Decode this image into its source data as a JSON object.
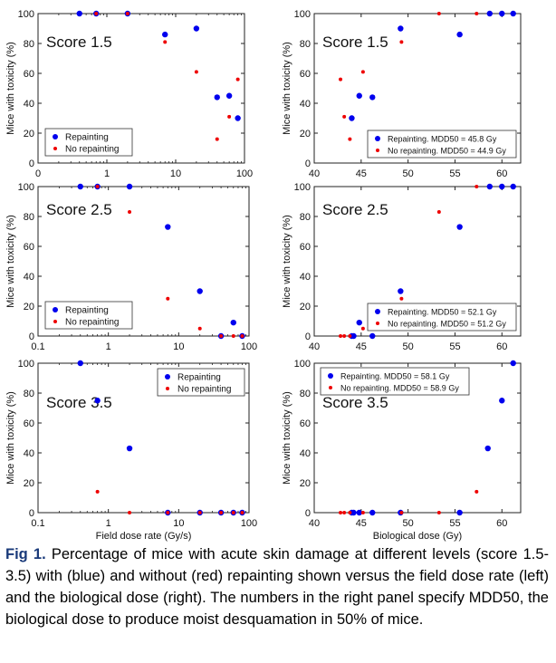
{
  "colors": {
    "repainting": "#0000ee",
    "no_repainting": "#ee0000"
  },
  "caption": {
    "label": "Fig 1.",
    "text": "Percentage of mice with acute skin damage at different levels (score 1.5-3.5) with (blue) and without (red) repainting shown versus the field dose rate (left) and the biological dose (right). The numbers in the right panel specify MDD50, the biological dose to produce moist desquamation in 50% of mice."
  },
  "chart_data": [
    {
      "type": "scatter",
      "annotation": "Score 1.5",
      "xlabel": "",
      "ylabel": "Mice with toxicity (%)",
      "xscale": "log",
      "xlim": [
        0.1,
        100
      ],
      "ylim": [
        0,
        100
      ],
      "xticks": [
        "0",
        "1",
        "10",
        "100"
      ],
      "yticks": [
        "0",
        "20",
        "40",
        "60",
        "80",
        "100"
      ],
      "legend": "bottom-left",
      "series": [
        {
          "name": "Repainting",
          "color": "blue",
          "x": [
            0.4,
            0.7,
            2,
            7,
            20,
            40,
            60,
            80
          ],
          "y": [
            100,
            100,
            100,
            86,
            90,
            44,
            45,
            30
          ]
        },
        {
          "name": "No repainting",
          "color": "red",
          "x": [
            0.7,
            2,
            7,
            20,
            40,
            60,
            80
          ],
          "y": [
            100,
            100,
            81,
            61,
            16,
            31,
            56
          ]
        }
      ]
    },
    {
      "type": "scatter",
      "annotation": "Score 1.5",
      "xlabel": "",
      "ylabel": "Mice with toxicity (%)",
      "xlim": [
        40,
        62
      ],
      "ylim": [
        0,
        100
      ],
      "xticks": [
        "40",
        "45",
        "50",
        "55",
        "60"
      ],
      "yticks": [
        "0",
        "20",
        "40",
        "60",
        "80",
        "100"
      ],
      "legend": "bottom-right",
      "series": [
        {
          "name": "Repainting. MDD50 = 45.8 Gy",
          "color": "blue",
          "x": [
            44,
            44.8,
            46.2,
            49.2,
            55.5,
            58.7,
            60,
            61.2
          ],
          "y": [
            30,
            45,
            44,
            90,
            86,
            100,
            100,
            100
          ]
        },
        {
          "name": "No repainting. MDD50 = 44.9 Gy",
          "color": "red",
          "x": [
            42.8,
            43.2,
            43.8,
            45.2,
            49.3,
            53.3,
            57.3
          ],
          "y": [
            56,
            31,
            16,
            61,
            81,
            100,
            100
          ]
        }
      ]
    },
    {
      "type": "scatter",
      "annotation": "Score 2.5",
      "xlabel": "",
      "ylabel": "Mice with toxicity (%)",
      "xscale": "log",
      "xlim": [
        0.1,
        100
      ],
      "ylim": [
        0,
        100
      ],
      "xticks": [
        "0.1",
        "1",
        "10",
        "100"
      ],
      "yticks": [
        "0",
        "20",
        "40",
        "60",
        "80",
        "100"
      ],
      "legend": "bottom-left",
      "series": [
        {
          "name": "Repainting",
          "color": "blue",
          "x": [
            0.4,
            0.7,
            2,
            7,
            20,
            40,
            60,
            80
          ],
          "y": [
            100,
            100,
            100,
            73,
            30,
            0,
            9,
            0
          ]
        },
        {
          "name": "No repainting",
          "color": "red",
          "x": [
            0.7,
            2,
            7,
            20,
            40,
            60,
            80
          ],
          "y": [
            100,
            83,
            25,
            5,
            0,
            0,
            0
          ]
        }
      ]
    },
    {
      "type": "scatter",
      "annotation": "Score 2.5",
      "xlabel": "",
      "ylabel": "Mice with toxicity (%)",
      "xlim": [
        40,
        62
      ],
      "ylim": [
        0,
        100
      ],
      "xticks": [
        "40",
        "45",
        "50",
        "55",
        "60"
      ],
      "yticks": [
        "0",
        "20",
        "40",
        "60",
        "80",
        "100"
      ],
      "legend": "bottom-right",
      "series": [
        {
          "name": "Repainting. MDD50 = 52.1 Gy",
          "color": "blue",
          "x": [
            44,
            44.2,
            44.8,
            46.2,
            49.2,
            55.5,
            58.7,
            60,
            61.2
          ],
          "y": [
            0,
            0,
            9,
            0,
            30,
            73,
            100,
            100,
            100
          ]
        },
        {
          "name": "No repainting. MDD50 = 51.2 Gy",
          "color": "red",
          "x": [
            42.8,
            43.2,
            43.8,
            45.2,
            49.3,
            53.3,
            57.3
          ],
          "y": [
            0,
            0,
            0,
            5,
            25,
            83,
            100
          ]
        }
      ]
    },
    {
      "type": "scatter",
      "annotation": "Score 3.5",
      "xlabel": "Field dose rate (Gy/s)",
      "ylabel": "Mice with toxicity (%)",
      "xscale": "log",
      "xlim": [
        0.1,
        100
      ],
      "ylim": [
        0,
        100
      ],
      "xticks": [
        "0.1",
        "1",
        "10",
        "100"
      ],
      "yticks": [
        "0",
        "20",
        "40",
        "60",
        "80",
        "100"
      ],
      "legend": "top-right",
      "series": [
        {
          "name": "Repainting",
          "color": "blue",
          "x": [
            0.4,
            0.7,
            2,
            7,
            20,
            40,
            60,
            80
          ],
          "y": [
            100,
            75,
            43,
            0,
            0,
            0,
            0,
            0
          ]
        },
        {
          "name": "No repainting",
          "color": "red",
          "x": [
            0.7,
            2,
            7,
            20,
            40,
            60,
            80
          ],
          "y": [
            14,
            0,
            0,
            0,
            0,
            0,
            0
          ]
        }
      ]
    },
    {
      "type": "scatter",
      "annotation": "Score 3.5",
      "xlabel": "Biological dose (Gy)",
      "ylabel": "Mice with toxicity (%)",
      "xlim": [
        40,
        62
      ],
      "ylim": [
        0,
        100
      ],
      "xticks": [
        "40",
        "45",
        "50",
        "55",
        "60"
      ],
      "yticks": [
        "0",
        "20",
        "40",
        "60",
        "80",
        "100"
      ],
      "legend": "top-left",
      "series": [
        {
          "name": "Repainting.  MDD50 = 58.1 Gy",
          "color": "blue",
          "x": [
            44,
            44.2,
            44.8,
            46.2,
            49.2,
            55.5,
            58.5,
            60,
            61.2
          ],
          "y": [
            0,
            0,
            0,
            0,
            0,
            0,
            43,
            75,
            100
          ]
        },
        {
          "name": "No repainting. MDD50 = 58.9 Gy",
          "color": "red",
          "x": [
            42.8,
            43.2,
            43.8,
            45.2,
            49.3,
            53.3,
            57.3
          ],
          "y": [
            0,
            0,
            0,
            0,
            0,
            0,
            14
          ]
        }
      ]
    }
  ]
}
